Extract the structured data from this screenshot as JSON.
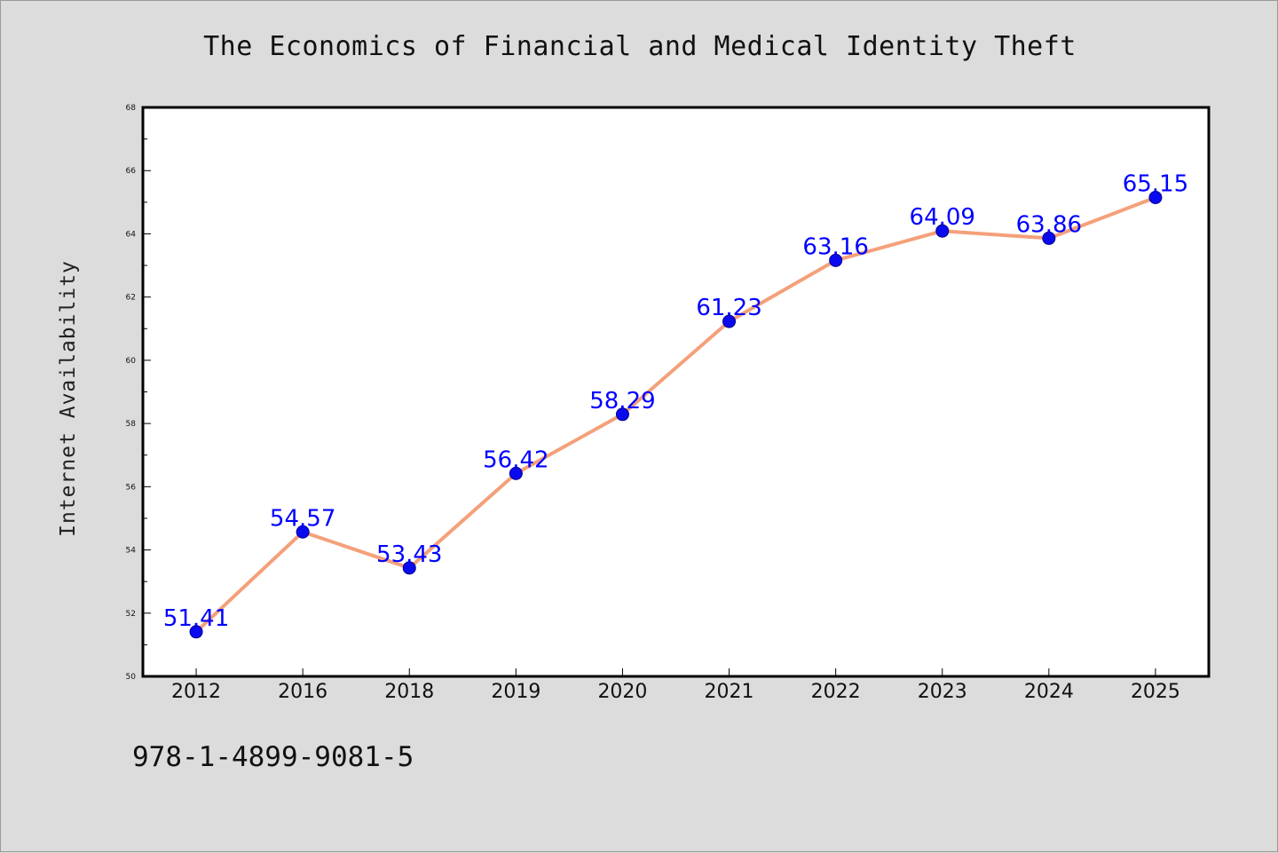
{
  "title": "The Economics of Financial and Medical Identity Theft",
  "footer_text": "978-1-4899-9081-5",
  "colors": {
    "background": "#dcdcdc",
    "plot_background": "#ffffff",
    "line": "#f4a07a",
    "marker": "#0a0af0",
    "data_label": "#0000ff"
  },
  "chart_data": {
    "type": "line",
    "title": "The Economics of Financial and Medical Identity Theft",
    "xlabel": "",
    "ylabel": "Internet Availability",
    "categories": [
      "2012",
      "2016",
      "2018",
      "2019",
      "2020",
      "2021",
      "2022",
      "2023",
      "2024",
      "2025"
    ],
    "series": [
      {
        "values": [
          51.41,
          54.57,
          53.43,
          56.42,
          58.29,
          61.23,
          63.16,
          64.09,
          63.86,
          65.15
        ],
        "labels": [
          "51.41",
          "54.57",
          "53.43",
          "56.42",
          "58.29",
          "61.23",
          "63.16",
          "64.09",
          "63.86",
          "65.15"
        ]
      }
    ],
    "ylim": [
      50,
      68
    ],
    "yticks": [
      "50",
      "52",
      "54",
      "56",
      "58",
      "60",
      "62",
      "64",
      "66",
      "68"
    ],
    "grid": false,
    "legend": "none"
  }
}
